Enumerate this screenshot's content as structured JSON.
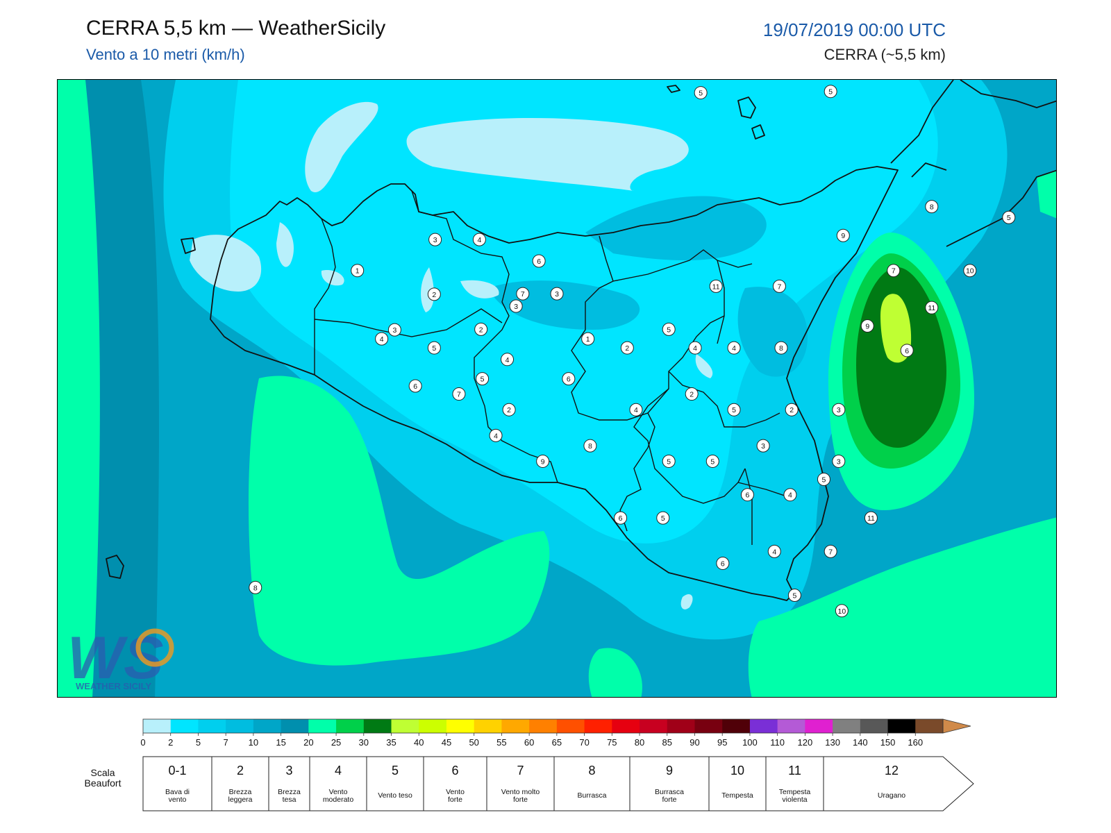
{
  "header": {
    "title": "CERRA 5,5 km — WeatherSicily",
    "subtitle": "Vento a 10 metri (km/h)",
    "datetime": "19/07/2019 00:00 UTC",
    "model": "CERRA (~5,5 km)"
  },
  "logo": {
    "text": "WS",
    "caption": "WEATHER SICILY"
  },
  "colors": {
    "land_line": "#111111",
    "band0": "#b8f0fb",
    "band2": "#00e5ff",
    "band5": "#00cfee",
    "band7": "#00bde0",
    "band10": "#00a6c8",
    "band15": "#008fae",
    "band20": "#00ffaa",
    "band25": "#00d04a",
    "band30": "#007a14",
    "band35": "#bfff33"
  },
  "legend": {
    "colorbar": {
      "ticks": [
        "0",
        "2",
        "5",
        "7",
        "10",
        "15",
        "20",
        "25",
        "30",
        "35",
        "40",
        "45",
        "50",
        "55",
        "60",
        "65",
        "70",
        "75",
        "80",
        "85",
        "90",
        "95",
        "100",
        "110",
        "120",
        "130",
        "140",
        "150",
        "160"
      ],
      "colors": [
        "#b8f0fb",
        "#00e5ff",
        "#00cfee",
        "#00bde0",
        "#00a6c8",
        "#008fae",
        "#00ffaa",
        "#00d04a",
        "#007a14",
        "#bfff33",
        "#ccff00",
        "#ffff00",
        "#ffd200",
        "#ffa800",
        "#ff8000",
        "#ff5000",
        "#ff2000",
        "#e60010",
        "#c80020",
        "#a00018",
        "#780010",
        "#500008",
        "#7a2fd6",
        "#b45ad6",
        "#e020d0",
        "#808080",
        "#585858",
        "#000000",
        "#7a4a2a",
        "#d08a4a"
      ]
    },
    "beaufort": {
      "caption": "Scala Beaufort",
      "cells": [
        {
          "num": "0-1",
          "label": "Bava di vento"
        },
        {
          "num": "2",
          "label": "Brezza leggera"
        },
        {
          "num": "3",
          "label": "Brezza tesa"
        },
        {
          "num": "4",
          "label": "Vento moderato"
        },
        {
          "num": "5",
          "label": "Vento teso"
        },
        {
          "num": "6",
          "label": "Vento forte"
        },
        {
          "num": "7",
          "label": "Vento molto forte"
        },
        {
          "num": "8",
          "label": "Burrasca"
        },
        {
          "num": "9",
          "label": "Burrasca forte"
        },
        {
          "num": "10",
          "label": "Tempesta"
        },
        {
          "num": "11",
          "label": "Tempesta violenta"
        },
        {
          "num": "12",
          "label": "Uragano"
        }
      ]
    }
  },
  "stations": [
    {
      "id": "s1",
      "v": "5",
      "lon": 12.862,
      "lat": 38.7
    },
    {
      "id": "s2",
      "v": "5",
      "lon": 13.44,
      "lat": 38.705
    },
    {
      "id": "s3",
      "v": "8",
      "lon": 13.89,
      "lat": 38.258
    },
    {
      "id": "s4",
      "v": "5",
      "lon": 14.233,
      "lat": 38.216
    },
    {
      "id": "s5",
      "v": "9",
      "lon": 13.496,
      "lat": 38.146
    },
    {
      "id": "s6",
      "v": "7",
      "lon": 13.72,
      "lat": 38.01
    },
    {
      "id": "s7",
      "v": "10",
      "lon": 14.06,
      "lat": 38.01
    },
    {
      "id": "s8",
      "v": "11",
      "lon": 12.93,
      "lat": 37.949
    },
    {
      "id": "s9",
      "v": "7",
      "lon": 13.212,
      "lat": 37.949
    },
    {
      "id": "s10",
      "v": "11",
      "lon": 13.89,
      "lat": 37.866
    },
    {
      "id": "s11",
      "v": "9",
      "lon": 13.604,
      "lat": 37.795
    },
    {
      "id": "s12",
      "v": "6",
      "lon": 13.78,
      "lat": 37.7
    },
    {
      "id": "s13",
      "v": "7",
      "lon": 12.07,
      "lat": 37.92
    },
    {
      "id": "s14",
      "v": "3",
      "lon": 11.68,
      "lat": 38.13
    },
    {
      "id": "s15",
      "v": "4",
      "lon": 11.877,
      "lat": 38.13
    },
    {
      "id": "s16",
      "v": "6",
      "lon": 12.142,
      "lat": 38.047
    },
    {
      "id": "s17",
      "v": "1",
      "lon": 11.334,
      "lat": 38.01
    },
    {
      "id": "s18",
      "v": "2",
      "lon": 11.676,
      "lat": 37.918
    },
    {
      "id": "s19",
      "v": "3",
      "lon": 11.5,
      "lat": 37.78
    },
    {
      "id": "s20",
      "v": "4",
      "lon": 11.442,
      "lat": 37.745
    },
    {
      "id": "s21",
      "v": "3",
      "lon": 12.222,
      "lat": 37.92
    },
    {
      "id": "s22",
      "v": "3",
      "lon": 12.04,
      "lat": 37.872
    },
    {
      "id": "s23",
      "v": "2",
      "lon": 11.884,
      "lat": 37.782
    },
    {
      "id": "s24",
      "v": "5",
      "lon": 12.72,
      "lat": 37.782
    },
    {
      "id": "s25",
      "v": "1",
      "lon": 12.36,
      "lat": 37.745
    },
    {
      "id": "s26",
      "v": "2",
      "lon": 12.535,
      "lat": 37.71
    },
    {
      "id": "s27",
      "v": "4",
      "lon": 12.837,
      "lat": 37.71
    },
    {
      "id": "s28",
      "v": "4",
      "lon": 13.01,
      "lat": 37.71
    },
    {
      "id": "s29",
      "v": "8",
      "lon": 13.22,
      "lat": 37.71
    },
    {
      "id": "s30",
      "v": "5",
      "lon": 11.676,
      "lat": 37.71
    },
    {
      "id": "s31",
      "v": "4",
      "lon": 12.001,
      "lat": 37.665
    },
    {
      "id": "s32",
      "v": "5",
      "lon": 11.89,
      "lat": 37.59
    },
    {
      "id": "s33",
      "v": "6",
      "lon": 12.274,
      "lat": 37.59
    },
    {
      "id": "s34",
      "v": "6",
      "lon": 11.592,
      "lat": 37.562
    },
    {
      "id": "s35",
      "v": "7",
      "lon": 11.786,
      "lat": 37.531
    },
    {
      "id": "s36",
      "v": "2",
      "lon": 12.822,
      "lat": 37.531
    },
    {
      "id": "s37",
      "v": "2",
      "lon": 12.009,
      "lat": 37.47
    },
    {
      "id": "s38",
      "v": "4",
      "lon": 12.574,
      "lat": 37.47
    },
    {
      "id": "s39",
      "v": "5",
      "lon": 13.01,
      "lat": 37.47
    },
    {
      "id": "s40",
      "v": "2",
      "lon": 13.267,
      "lat": 37.47
    },
    {
      "id": "s41",
      "v": "3",
      "lon": 13.476,
      "lat": 37.47
    },
    {
      "id": "s42",
      "v": "4",
      "lon": 11.95,
      "lat": 37.37
    },
    {
      "id": "s43",
      "v": "3",
      "lon": 13.14,
      "lat": 37.33
    },
    {
      "id": "s44",
      "v": "8",
      "lon": 12.37,
      "lat": 37.33
    },
    {
      "id": "s45",
      "v": "9",
      "lon": 12.159,
      "lat": 37.27
    },
    {
      "id": "s46",
      "v": "5",
      "lon": 12.72,
      "lat": 37.27
    },
    {
      "id": "s47",
      "v": "5",
      "lon": 12.915,
      "lat": 37.27
    },
    {
      "id": "s48",
      "v": "3",
      "lon": 13.476,
      "lat": 37.27
    },
    {
      "id": "s49",
      "v": "5",
      "lon": 13.41,
      "lat": 37.2
    },
    {
      "id": "s50",
      "v": "6",
      "lon": 13.07,
      "lat": 37.14
    },
    {
      "id": "s51",
      "v": "4",
      "lon": 13.26,
      "lat": 37.14
    },
    {
      "id": "s52",
      "v": "6",
      "lon": 12.505,
      "lat": 37.05
    },
    {
      "id": "s53",
      "v": "5",
      "lon": 12.694,
      "lat": 37.05
    },
    {
      "id": "s54",
      "v": "11",
      "lon": 13.62,
      "lat": 37.05
    },
    {
      "id": "s55",
      "v": "6",
      "lon": 12.96,
      "lat": 36.874
    },
    {
      "id": "s56",
      "v": "4",
      "lon": 13.19,
      "lat": 36.92
    },
    {
      "id": "s57",
      "v": "7",
      "lon": 13.44,
      "lat": 36.92
    },
    {
      "id": "s58",
      "v": "5",
      "lon": 13.28,
      "lat": 36.75
    },
    {
      "id": "s59",
      "v": "10",
      "lon": 13.49,
      "lat": 36.69
    },
    {
      "id": "s60",
      "v": "8",
      "lon": 10.88,
      "lat": 36.78
    }
  ]
}
